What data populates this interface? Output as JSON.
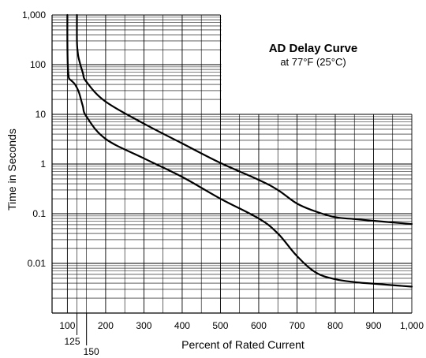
{
  "chart_data": {
    "type": "line",
    "title": "AD Delay Curve",
    "subtitle": "at 77°F (25°C)",
    "xlabel": "Percent of Rated Current",
    "ylabel": "Time in Seconds",
    "xlim": [
      60,
      1000
    ],
    "ylim": [
      0.001,
      1000
    ],
    "yscale": "log",
    "x_ticks": [
      100,
      125,
      150,
      200,
      300,
      400,
      500,
      600,
      700,
      800,
      900,
      1000
    ],
    "x_tick_labels": [
      "100",
      "125",
      "150",
      "200",
      "300",
      "400",
      "500",
      "600",
      "700",
      "800",
      "900",
      "1,000"
    ],
    "y_ticks": [
      1000,
      100,
      10,
      1,
      0.1,
      0.01
    ],
    "y_tick_labels": [
      "1,000",
      "100",
      "10",
      "1",
      "0.1",
      "0.01"
    ],
    "grid": true,
    "series": [
      {
        "x": [
          100,
          100,
          101,
          103,
          105,
          110,
          120,
          130,
          140,
          150,
          200,
          300,
          400,
          500,
          600,
          650,
          700,
          750,
          800,
          850,
          900,
          1000
        ],
        "y": [
          1000,
          300,
          100,
          60,
          52,
          48,
          40,
          28,
          15,
          9,
          3.2,
          1.3,
          0.55,
          0.2,
          0.08,
          0.04,
          0.014,
          0.0065,
          0.0048,
          0.0042,
          0.0039,
          0.0034
        ]
      },
      {
        "x": [
          125,
          125,
          127,
          130,
          140,
          150,
          200,
          300,
          400,
          500,
          600,
          650,
          700,
          750,
          800,
          850,
          900,
          1000
        ],
        "y": [
          1000,
          300,
          180,
          130,
          70,
          45,
          18,
          6.5,
          2.6,
          1.05,
          0.48,
          0.3,
          0.16,
          0.11,
          0.085,
          0.078,
          0.072,
          0.062
        ]
      }
    ],
    "annotations": [
      "AD Delay Curve",
      "at 77°F (25°C)"
    ]
  }
}
